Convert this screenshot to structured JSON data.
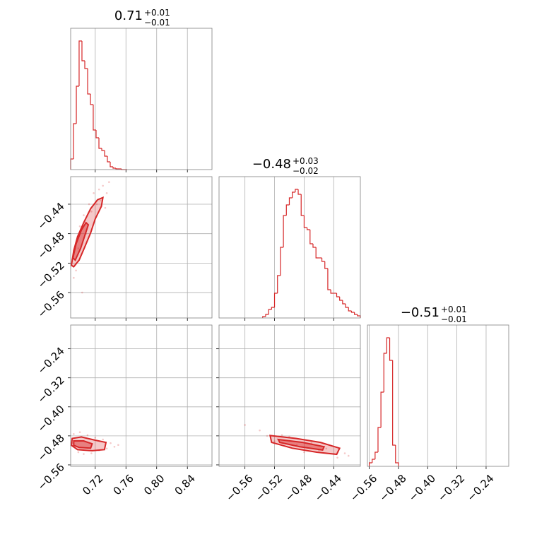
{
  "chart_data": [
    {
      "type": "histogram",
      "color": "#d62728",
      "grid": true,
      "title": {
        "value": "0.71",
        "upper": "+0.01",
        "lower": "−0.01"
      },
      "bins": [
        0.688,
        0.6917,
        0.6954,
        0.699,
        0.7027,
        0.7064,
        0.7101,
        0.7138,
        0.7174,
        0.7211,
        0.7248,
        0.7285,
        0.7322,
        0.7358,
        0.7395,
        0.7432,
        0.7469,
        0.7506,
        0.7542,
        0.7579,
        0.7616
      ],
      "values": [
        15,
        65,
        118,
        182,
        154,
        143,
        107,
        92,
        56,
        45,
        30,
        27,
        19,
        11,
        4,
        2,
        1,
        1,
        0,
        0
      ],
      "xlim": [
        0.688,
        0.872
      ],
      "xticks": [
        0.72,
        0.76,
        0.8,
        0.84
      ],
      "ylim": [
        0,
        200
      ],
      "show_xtick_labels": false
    },
    {
      "type": "scatter",
      "color": "#d62728",
      "grid": true,
      "x": [
        0.695,
        0.7,
        0.705,
        0.712,
        0.718,
        0.725,
        0.73,
        0.735,
        0.698,
        0.708,
        0.715,
        0.722,
        0.692,
        0.727,
        0.738,
        0.703,
        0.69,
        0.733
      ],
      "y": [
        -0.53,
        -0.47,
        -0.455,
        -0.44,
        -0.425,
        -0.42,
        -0.415,
        -0.425,
        -0.5,
        -0.48,
        -0.45,
        -0.44,
        -0.54,
        -0.435,
        -0.41,
        -0.56,
        -0.515,
        -0.445
      ],
      "contours": [
        {
          "x": [
            0.689,
            0.692,
            0.697,
            0.705,
            0.714,
            0.723,
            0.73,
            0.728,
            0.72,
            0.714,
            0.706,
            0.699,
            0.692
          ],
          "y": [
            -0.523,
            -0.503,
            -0.484,
            -0.465,
            -0.446,
            -0.434,
            -0.431,
            -0.443,
            -0.46,
            -0.479,
            -0.499,
            -0.516,
            -0.525
          ]
        },
        {
          "x": [
            0.691,
            0.695,
            0.702,
            0.708,
            0.711,
            0.706,
            0.701,
            0.694
          ],
          "y": [
            -0.513,
            -0.494,
            -0.475,
            -0.465,
            -0.468,
            -0.484,
            -0.5,
            -0.516
          ]
        }
      ],
      "xlim": [
        0.688,
        0.872
      ],
      "xticks": [
        0.72,
        0.76,
        0.8,
        0.84
      ],
      "ylim": [
        -0.5945,
        -0.4026
      ],
      "yticks": [
        {
          "value": -0.44,
          "label": "−0.44"
        },
        {
          "value": -0.48,
          "label": "−0.48"
        },
        {
          "value": -0.52,
          "label": "−0.52"
        },
        {
          "value": -0.56,
          "label": "−0.56"
        }
      ],
      "show_xtick_labels": false,
      "show_ytick_labels": true
    },
    {
      "type": "histogram",
      "color": "#d62728",
      "grid": true,
      "title": {
        "value": "−0.48",
        "upper": "+0.03",
        "lower": "−0.02"
      },
      "bins": [
        -0.536,
        -0.532,
        -0.528,
        -0.524,
        -0.52,
        -0.516,
        -0.512,
        -0.508,
        -0.504,
        -0.5,
        -0.496,
        -0.492,
        -0.488,
        -0.484,
        -0.48,
        -0.476,
        -0.472,
        -0.468,
        -0.464,
        -0.46,
        -0.456,
        -0.452,
        -0.448,
        -0.444,
        -0.44,
        -0.436,
        -0.432,
        -0.428,
        -0.424,
        -0.42,
        -0.416,
        -0.412,
        -0.408,
        -0.404
      ],
      "values": [
        2,
        5,
        12,
        15,
        35,
        60,
        100,
        145,
        160,
        170,
        178,
        182,
        175,
        145,
        128,
        125,
        105,
        100,
        85,
        85,
        80,
        70,
        40,
        35,
        35,
        30,
        25,
        20,
        15,
        10,
        8,
        5,
        3
      ],
      "xlim": [
        -0.595,
        -0.404
      ],
      "xticks": [
        -0.56,
        -0.52,
        -0.48,
        -0.44
      ],
      "ylim": [
        0,
        200
      ],
      "show_xtick_labels": false
    },
    {
      "type": "scatter",
      "color": "#d62728",
      "grid": true,
      "x": [
        0.692,
        0.7,
        0.71,
        0.72,
        0.73,
        0.74,
        0.745,
        0.705,
        0.715,
        0.725,
        0.735,
        0.698,
        0.75,
        0.69
      ],
      "y": [
        -0.475,
        -0.47,
        -0.478,
        -0.485,
        -0.49,
        -0.5,
        -0.51,
        -0.53,
        -0.528,
        -0.52,
        -0.515,
        -0.525,
        -0.505,
        -0.5
      ],
      "contours": [
        {
          "x": [
            0.69,
            0.702,
            0.72,
            0.734,
            0.732,
            0.716,
            0.697,
            0.689
          ],
          "y": [
            -0.487,
            -0.483,
            -0.492,
            -0.498,
            -0.518,
            -0.521,
            -0.518,
            -0.506
          ]
        },
        {
          "x": [
            0.692,
            0.705,
            0.716,
            0.714,
            0.699,
            0.692
          ],
          "y": [
            -0.494,
            -0.494,
            -0.502,
            -0.514,
            -0.512,
            -0.506
          ]
        }
      ],
      "xlim": [
        0.688,
        0.872
      ],
      "xticks": [
        0.72,
        0.76,
        {
          "value": 0.8,
          "label": "0.80"
        },
        0.84
      ],
      "ylim": [
        -0.564,
        -0.1745
      ],
      "yticks": [
        {
          "value": -0.24,
          "label": "−0.24"
        },
        {
          "value": -0.32,
          "label": "−0.32"
        },
        {
          "value": -0.4,
          "label": "−0.40"
        },
        {
          "value": -0.48,
          "label": "−0.48"
        },
        {
          "value": -0.56,
          "label": "−0.56"
        }
      ],
      "show_xtick_labels": true,
      "show_ytick_labels": true
    },
    {
      "type": "scatter",
      "color": "#d62728",
      "grid": true,
      "x": [
        -0.56,
        -0.54,
        -0.53,
        -0.51,
        -0.5,
        -0.49,
        -0.47,
        -0.46,
        -0.45,
        -0.44,
        -0.425,
        -0.42,
        -0.52,
        -0.48,
        -0.435
      ],
      "y": [
        -0.45,
        -0.465,
        -0.48,
        -0.478,
        -0.482,
        -0.505,
        -0.5,
        -0.52,
        -0.515,
        -0.53,
        -0.528,
        -0.535,
        -0.495,
        -0.525,
        -0.54
      ],
      "contours": [
        {
          "x": [
            -0.526,
            -0.491,
            -0.458,
            -0.432,
            -0.436,
            -0.463,
            -0.496,
            -0.524
          ],
          "y": [
            -0.479,
            -0.487,
            -0.498,
            -0.514,
            -0.531,
            -0.525,
            -0.514,
            -0.498
          ]
        },
        {
          "x": [
            -0.515,
            -0.482,
            -0.453,
            -0.455,
            -0.486,
            -0.513
          ],
          "y": [
            -0.49,
            -0.498,
            -0.51,
            -0.519,
            -0.51,
            -0.498
          ]
        }
      ],
      "xlim": [
        -0.595,
        -0.404
      ],
      "xticks": [
        {
          "value": -0.56,
          "label": "−0.56"
        },
        {
          "value": -0.52,
          "label": "−0.52"
        },
        {
          "value": -0.48,
          "label": "−0.48"
        },
        {
          "value": -0.44,
          "label": "−0.44"
        }
      ],
      "ylim": [
        -0.564,
        -0.1745
      ],
      "yticks": [
        -0.24,
        -0.32,
        -0.4,
        -0.48,
        -0.56
      ],
      "show_xtick_labels": true,
      "show_ytick_labels": false
    },
    {
      "type": "histogram",
      "color": "#d62728",
      "grid": true,
      "title": {
        "value": "−0.51",
        "upper": "+0.01",
        "lower": "−0.01"
      },
      "bins": [
        -0.56,
        -0.552,
        -0.544,
        -0.536,
        -0.528,
        -0.52,
        -0.512,
        -0.504,
        -0.496,
        -0.488,
        -0.48
      ],
      "values": [
        5,
        10,
        20,
        55,
        105,
        160,
        182,
        150,
        30,
        5
      ],
      "xlim": [
        -0.565,
        -0.178
      ],
      "xticks": [
        {
          "value": -0.56,
          "label": "−0.56"
        },
        {
          "value": -0.48,
          "label": "−0.48"
        },
        {
          "value": -0.4,
          "label": "−0.40"
        },
        {
          "value": -0.32,
          "label": "−0.32"
        },
        {
          "value": -0.24,
          "label": "−0.24"
        }
      ],
      "ylim": [
        0,
        200
      ],
      "show_xtick_labels": true
    }
  ]
}
